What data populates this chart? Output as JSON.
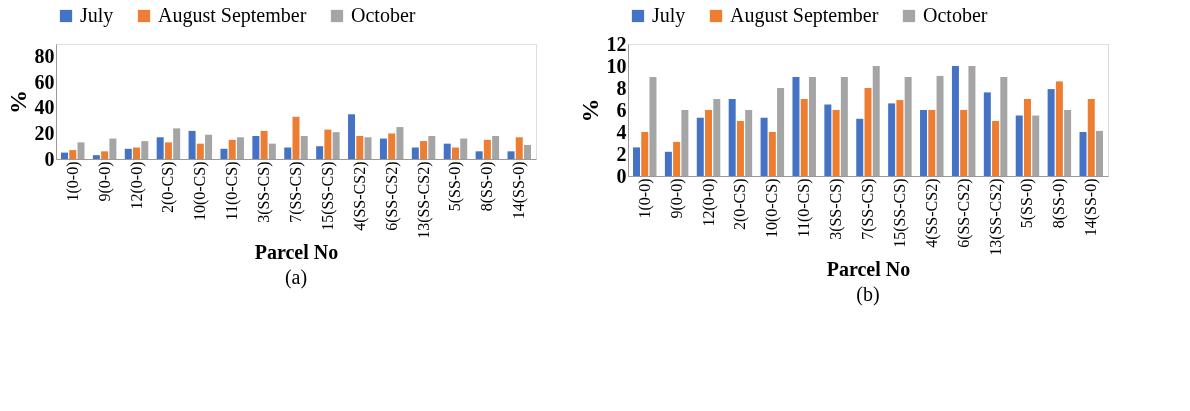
{
  "chart_data": [
    {
      "type": "bar",
      "categories": [
        "1(0-0)",
        "9(0-0)",
        "12(0-0)",
        "2(0-CS)",
        "10(0-CS)",
        "11(0-CS)",
        "3(SS-CS)",
        "7(SS-CS)",
        "15(SS-CS)",
        "4(SS-CS2)",
        "6(SS-CS2)",
        "13(SS-CS2)",
        "5(SS-0)",
        "8(SS-0)",
        "14(SS-0)"
      ],
      "series": [
        {
          "name": "July",
          "color": "#4472c4",
          "values": [
            5,
            3,
            8,
            17,
            22,
            8,
            18,
            9,
            10,
            35,
            16,
            9,
            12,
            6,
            6
          ]
        },
        {
          "name": "August September",
          "color": "#ed7d31",
          "values": [
            7,
            6,
            9,
            13,
            12,
            15,
            22,
            33,
            23,
            18,
            20,
            14,
            9,
            15,
            17
          ]
        },
        {
          "name": "October",
          "color": "#a5a5a5",
          "values": [
            13,
            16,
            14,
            24,
            19,
            17,
            12,
            18,
            21,
            17,
            25,
            18,
            16,
            18,
            11
          ]
        }
      ],
      "xlabel": "Parcel No",
      "ylabel": "%",
      "ylim": [
        0,
        90
      ],
      "yticks": [
        0,
        20,
        40,
        60,
        80
      ],
      "grid": false,
      "legend": "top",
      "annotations": [
        "(a)"
      ]
    },
    {
      "type": "bar",
      "categories": [
        "1(0-0)",
        "9(0-0)",
        "12(0-0)",
        "2(0-CS)",
        "10(0-CS)",
        "11(0-CS)",
        "3(SS-CS)",
        "7(SS-CS)",
        "15(SS-CS)",
        "4(SS-CS2)",
        "6(SS-CS2)",
        "13(SS-CS2)",
        "5(SS-0)",
        "8(SS-0)",
        "14(SS-0)"
      ],
      "series": [
        {
          "name": "July",
          "color": "#4472c4",
          "values": [
            2.6,
            2.2,
            5.3,
            7,
            5.3,
            9,
            6.5,
            5.2,
            6.6,
            6,
            10,
            7.6,
            5.5,
            7.9,
            4
          ]
        },
        {
          "name": "August September",
          "color": "#ed7d31",
          "values": [
            4,
            3.1,
            6,
            5,
            4,
            7,
            6,
            8,
            6.9,
            6,
            6,
            5,
            7,
            8.6,
            7
          ]
        },
        {
          "name": "October",
          "color": "#a5a5a5",
          "values": [
            9,
            6,
            7,
            6,
            8,
            9,
            9,
            10,
            9,
            9.1,
            10,
            9,
            5.5,
            6,
            4.1
          ]
        }
      ],
      "xlabel": "Parcel No",
      "ylabel": "%",
      "ylim": [
        0,
        12
      ],
      "yticks": [
        0,
        2,
        4,
        6,
        8,
        10,
        12
      ],
      "grid": false,
      "legend": "top",
      "annotations": [
        "(b)"
      ]
    }
  ]
}
